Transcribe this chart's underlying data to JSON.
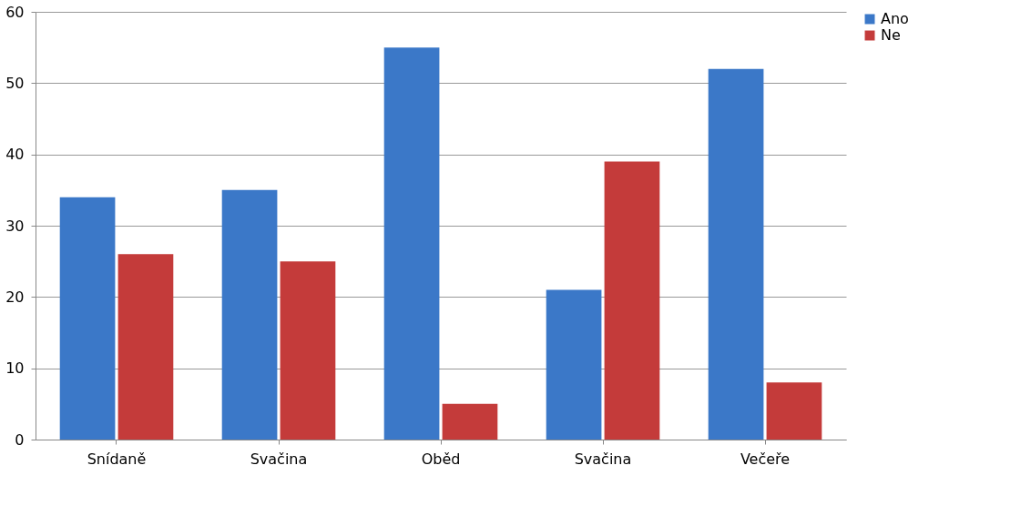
{
  "chart_data": {
    "type": "bar",
    "categories": [
      "Snídaně",
      "Svačina",
      "Oběd",
      "Svačina",
      "Večeře"
    ],
    "series": [
      {
        "name": "Ano",
        "color": "#3b78c8",
        "values": [
          34,
          35,
          55,
          21,
          52
        ]
      },
      {
        "name": "Ne",
        "color": "#c43b3a",
        "values": [
          26,
          25,
          5,
          39,
          8
        ]
      }
    ],
    "ylim": [
      0,
      60
    ],
    "yticks": [
      0,
      10,
      20,
      30,
      40,
      50,
      60
    ],
    "grid": "y",
    "legend": "right"
  }
}
